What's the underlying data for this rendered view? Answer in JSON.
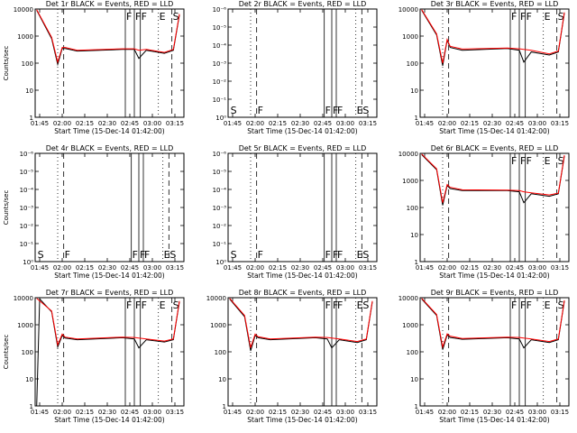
{
  "colors": {
    "events": "#000000",
    "lld": "#ff0000",
    "background": "#ffffff"
  },
  "chart_data": [
    {
      "type": "line",
      "title": "Det 1r BLACK = Events, RED = LLD",
      "xlabel": "Start Time (15-Dec-14 01:42:00)",
      "ylabel": "Counts/sec",
      "scale": "log",
      "ylim": [
        1,
        10000
      ],
      "yticks": [
        "10000",
        "1000",
        "100",
        "10",
        "1"
      ],
      "xlim": [
        "01:42",
        "03:21"
      ],
      "xticks": [
        "01:45",
        "02:00",
        "02:15",
        "02:30",
        "02:45",
        "03:00",
        "03:15"
      ],
      "markers": [
        {
          "time": "01:57",
          "style": "dotted",
          "label": ""
        },
        {
          "time": "02:01",
          "style": "dashed",
          "label": ""
        },
        {
          "time": "02:42",
          "style": "solid",
          "label": "F"
        },
        {
          "time": "02:48",
          "style": "solid",
          "label": "F"
        },
        {
          "time": "02:52",
          "style": "solid",
          "label": "F"
        },
        {
          "time": "03:04",
          "style": "dotted",
          "label": "E"
        },
        {
          "time": "03:13",
          "style": "dashed",
          "label": "S"
        }
      ],
      "series": [
        {
          "name": "Events",
          "x": [
            "01:43",
            "01:53",
            "01:57",
            "02:00",
            "02:02",
            "02:10",
            "02:40",
            "02:48",
            "02:51",
            "02:56",
            "03:08",
            "03:14",
            "03:18"
          ],
          "values": [
            9000,
            800,
            90,
            350,
            350,
            280,
            320,
            320,
            150,
            300,
            230,
            300,
            6000
          ]
        },
        {
          "name": "LLD",
          "x": [
            "01:43",
            "01:53",
            "01:57",
            "02:00",
            "02:02",
            "02:10",
            "02:40",
            "02:48",
            "02:51",
            "02:56",
            "03:08",
            "03:14",
            "03:18"
          ],
          "values": [
            9500,
            900,
            110,
            380,
            380,
            300,
            340,
            340,
            300,
            320,
            250,
            320,
            6500
          ]
        }
      ]
    },
    {
      "type": "line",
      "title": "Det 2r BLACK = Events, RED = LLD",
      "xlabel": "Start Time (15-Dec-14 01:42:00)",
      "ylabel": "",
      "scale": "log",
      "ylim": [
        1,
        1e-06
      ],
      "yticks": [
        "10⁻⁶",
        "10⁻⁵",
        "10⁻⁴",
        "10⁻³",
        "10⁻²",
        "10⁻¹",
        "10⁰"
      ],
      "xlim": [
        "01:42",
        "03:21"
      ],
      "xticks": [
        "01:45",
        "02:00",
        "02:15",
        "02:30",
        "02:45",
        "03:00",
        "03:15"
      ],
      "markers": [
        {
          "time": "01:43",
          "style": "none",
          "label": "S"
        },
        {
          "time": "01:57",
          "style": "dotted",
          "label": ""
        },
        {
          "time": "02:01",
          "style": "dashed",
          "label": "F"
        },
        {
          "time": "02:46",
          "style": "solid",
          "label": "F"
        },
        {
          "time": "02:51",
          "style": "solid",
          "label": "F"
        },
        {
          "time": "02:54",
          "style": "solid",
          "label": "F"
        },
        {
          "time": "03:07",
          "style": "dotted",
          "label": "E"
        },
        {
          "time": "03:11",
          "style": "dashed",
          "label": "S"
        }
      ],
      "series": []
    },
    {
      "type": "line",
      "title": "Det 3r BLACK = Events, RED = LLD",
      "xlabel": "Start Time (15-Dec-14 01:42:00)",
      "ylabel": "",
      "scale": "log",
      "ylim": [
        1,
        10000
      ],
      "yticks": [
        "10000",
        "1000",
        "100",
        "10",
        "1"
      ],
      "xlim": [
        "01:42",
        "03:21"
      ],
      "xticks": [
        "01:45",
        "02:00",
        "02:15",
        "02:30",
        "02:45",
        "03:00",
        "03:15"
      ],
      "markers": [
        {
          "time": "01:57",
          "style": "dotted",
          "label": ""
        },
        {
          "time": "02:01",
          "style": "dashed",
          "label": ""
        },
        {
          "time": "02:42",
          "style": "solid",
          "label": "F"
        },
        {
          "time": "02:48",
          "style": "solid",
          "label": "F"
        },
        {
          "time": "02:52",
          "style": "solid",
          "label": "F"
        },
        {
          "time": "03:04",
          "style": "dotted",
          "label": "E"
        },
        {
          "time": "03:13",
          "style": "dashed",
          "label": "S"
        }
      ],
      "series": [
        {
          "name": "Events",
          "x": [
            "01:43",
            "01:53",
            "01:57",
            "02:00",
            "02:02",
            "02:10",
            "02:40",
            "02:48",
            "02:51",
            "02:56",
            "03:08",
            "03:14",
            "03:18"
          ],
          "values": [
            9000,
            1100,
            80,
            700,
            380,
            300,
            350,
            300,
            110,
            260,
            200,
            260,
            7000
          ]
        },
        {
          "name": "LLD",
          "x": [
            "01:43",
            "01:53",
            "01:57",
            "02:00",
            "02:02",
            "02:10",
            "02:40",
            "02:48",
            "02:51",
            "02:56",
            "03:08",
            "03:14",
            "03:18"
          ],
          "values": [
            9500,
            1200,
            100,
            750,
            420,
            330,
            360,
            340,
            320,
            300,
            220,
            280,
            7500
          ]
        }
      ]
    },
    {
      "type": "line",
      "title": "Det 4r BLACK = Events, RED = LLD",
      "xlabel": "Start Time (15-Dec-14 01:42:00)",
      "ylabel": "Counts/sec",
      "scale": "log",
      "ylim": [
        1,
        1e-06
      ],
      "yticks": [
        "10⁻⁶",
        "10⁻⁵",
        "10⁻⁴",
        "10⁻³",
        "10⁻²",
        "10⁻¹",
        "10⁰"
      ],
      "xlim": [
        "01:42",
        "03:21"
      ],
      "xticks": [
        "01:45",
        "02:00",
        "02:15",
        "02:30",
        "02:45",
        "03:00",
        "03:15"
      ],
      "markers": [
        {
          "time": "01:43",
          "style": "none",
          "label": "S"
        },
        {
          "time": "01:57",
          "style": "dotted",
          "label": ""
        },
        {
          "time": "02:01",
          "style": "dashed",
          "label": "F"
        },
        {
          "time": "02:46",
          "style": "solid",
          "label": "F"
        },
        {
          "time": "02:51",
          "style": "solid",
          "label": "F"
        },
        {
          "time": "02:54",
          "style": "solid",
          "label": "F"
        },
        {
          "time": "03:07",
          "style": "dotted",
          "label": "E"
        },
        {
          "time": "03:11",
          "style": "dashed",
          "label": "S"
        }
      ],
      "series": []
    },
    {
      "type": "line",
      "title": "Det 5r BLACK = Events, RED = LLD",
      "xlabel": "Start Time (15-Dec-14 01:42:00)",
      "ylabel": "",
      "scale": "log",
      "ylim": [
        1,
        1e-06
      ],
      "yticks": [
        "10⁻⁶",
        "10⁻⁵",
        "10⁻⁴",
        "10⁻³",
        "10⁻²",
        "10⁻¹",
        "10⁰"
      ],
      "xlim": [
        "01:42",
        "03:21"
      ],
      "xticks": [
        "01:45",
        "02:00",
        "02:15",
        "02:30",
        "02:45",
        "03:00",
        "03:15"
      ],
      "markers": [
        {
          "time": "01:43",
          "style": "none",
          "label": "S"
        },
        {
          "time": "01:57",
          "style": "dotted",
          "label": ""
        },
        {
          "time": "02:01",
          "style": "dashed",
          "label": "F"
        },
        {
          "time": "02:46",
          "style": "solid",
          "label": "F"
        },
        {
          "time": "02:51",
          "style": "solid",
          "label": "F"
        },
        {
          "time": "02:54",
          "style": "solid",
          "label": "F"
        },
        {
          "time": "03:07",
          "style": "dotted",
          "label": "E"
        },
        {
          "time": "03:11",
          "style": "dashed",
          "label": "S"
        }
      ],
      "series": []
    },
    {
      "type": "line",
      "title": "Det 6r BLACK = Events, RED = LLD",
      "xlabel": "Start Time (15-Dec-14 01:42:00)",
      "ylabel": "",
      "scale": "log",
      "ylim": [
        1,
        10000
      ],
      "yticks": [
        "10000",
        "1000",
        "100",
        "10",
        "1"
      ],
      "xlim": [
        "01:42",
        "03:21"
      ],
      "xticks": [
        "01:45",
        "02:00",
        "02:15",
        "02:30",
        "02:45",
        "03:00",
        "03:15"
      ],
      "markers": [
        {
          "time": "01:57",
          "style": "dotted",
          "label": ""
        },
        {
          "time": "02:01",
          "style": "dashed",
          "label": ""
        },
        {
          "time": "02:42",
          "style": "solid",
          "label": "F"
        },
        {
          "time": "02:48",
          "style": "solid",
          "label": "F"
        },
        {
          "time": "02:52",
          "style": "solid",
          "label": "F"
        },
        {
          "time": "03:04",
          "style": "dotted",
          "label": "E"
        },
        {
          "time": "03:13",
          "style": "dashed",
          "label": "S"
        }
      ],
      "series": [
        {
          "name": "Events",
          "x": [
            "01:43",
            "01:53",
            "01:57",
            "02:00",
            "02:02",
            "02:10",
            "02:40",
            "02:48",
            "02:51",
            "02:56",
            "03:08",
            "03:14",
            "03:18"
          ],
          "values": [
            9000,
            2500,
            120,
            650,
            500,
            420,
            420,
            380,
            150,
            320,
            260,
            320,
            8000
          ]
        },
        {
          "name": "LLD",
          "x": [
            "01:43",
            "01:53",
            "01:57",
            "02:00",
            "02:02",
            "02:10",
            "02:40",
            "02:48",
            "02:51",
            "02:56",
            "03:08",
            "03:14",
            "03:18"
          ],
          "values": [
            9500,
            2700,
            150,
            700,
            560,
            450,
            440,
            420,
            380,
            350,
            290,
            340,
            8500
          ]
        }
      ]
    },
    {
      "type": "line",
      "title": "Det 7r BLACK = Events, RED = LLD",
      "xlabel": "Start Time (15-Dec-14 01:42:00)",
      "ylabel": "Counts/sec",
      "scale": "log",
      "ylim": [
        1,
        10000
      ],
      "yticks": [
        "10000",
        "1000",
        "100",
        "10",
        "1"
      ],
      "xlim": [
        "01:42",
        "03:21"
      ],
      "xticks": [
        "01:45",
        "02:00",
        "02:15",
        "02:30",
        "02:45",
        "03:00",
        "03:15"
      ],
      "markers": [
        {
          "time": "01:57",
          "style": "dotted",
          "label": ""
        },
        {
          "time": "02:01",
          "style": "dashed",
          "label": ""
        },
        {
          "time": "02:42",
          "style": "solid",
          "label": "F"
        },
        {
          "time": "02:48",
          "style": "solid",
          "label": "F"
        },
        {
          "time": "02:52",
          "style": "solid",
          "label": "F"
        },
        {
          "time": "03:04",
          "style": "dotted",
          "label": "E"
        },
        {
          "time": "03:13",
          "style": "dashed",
          "label": "S"
        }
      ],
      "series": [
        {
          "name": "Events",
          "x": [
            "01:43",
            "01:45",
            "01:53",
            "01:57",
            "02:00",
            "02:02",
            "02:10",
            "02:40",
            "02:48",
            "02:51",
            "02:56",
            "03:08",
            "03:14",
            "03:18"
          ],
          "values": [
            1,
            9000,
            3000,
            150,
            400,
            320,
            280,
            330,
            300,
            140,
            280,
            230,
            280,
            7000
          ]
        },
        {
          "name": "LLD",
          "x": [
            "01:43",
            "01:53",
            "01:57",
            "02:00",
            "02:02",
            "02:10",
            "02:40",
            "02:48",
            "02:51",
            "02:56",
            "03:08",
            "03:14",
            "03:18"
          ],
          "values": [
            9500,
            3200,
            180,
            450,
            350,
            300,
            350,
            340,
            320,
            300,
            250,
            300,
            7500
          ]
        }
      ]
    },
    {
      "type": "line",
      "title": "Det 8r BLACK = Events, RED = LLD",
      "xlabel": "Start Time (15-Dec-14 01:42:00)",
      "ylabel": "",
      "scale": "log",
      "ylim": [
        1,
        10000
      ],
      "yticks": [
        "10000",
        "1000",
        "100",
        "10",
        "1"
      ],
      "xlim": [
        "01:42",
        "03:21"
      ],
      "xticks": [
        "01:45",
        "02:00",
        "02:15",
        "02:30",
        "02:45",
        "03:00",
        "03:15"
      ],
      "markers": [
        {
          "time": "01:57",
          "style": "dotted",
          "label": ""
        },
        {
          "time": "02:01",
          "style": "dashed",
          "label": ""
        },
        {
          "time": "02:46",
          "style": "solid",
          "label": "F"
        },
        {
          "time": "02:51",
          "style": "solid",
          "label": "F"
        },
        {
          "time": "02:54",
          "style": "solid",
          "label": "F"
        },
        {
          "time": "03:07",
          "style": "dotted",
          "label": "E"
        },
        {
          "time": "03:11",
          "style": "dashed",
          "label": "S"
        }
      ],
      "series": [
        {
          "name": "Events",
          "x": [
            "01:43",
            "01:53",
            "01:57",
            "02:00",
            "02:02",
            "02:10",
            "02:40",
            "02:48",
            "02:51",
            "02:56",
            "03:08",
            "03:14",
            "03:18"
          ],
          "values": [
            9000,
            2000,
            110,
            400,
            330,
            280,
            330,
            300,
            140,
            280,
            220,
            280,
            7000
          ]
        },
        {
          "name": "LLD",
          "x": [
            "01:43",
            "01:53",
            "01:57",
            "02:00",
            "02:02",
            "02:10",
            "02:40",
            "02:48",
            "02:51",
            "02:56",
            "03:08",
            "03:14",
            "03:18"
          ],
          "values": [
            9500,
            2200,
            140,
            450,
            360,
            300,
            350,
            340,
            320,
            300,
            240,
            300,
            7500
          ]
        }
      ]
    },
    {
      "type": "line",
      "title": "Det 9r BLACK = Events, RED = LLD",
      "xlabel": "Start Time (15-Dec-14 01:42:00)",
      "ylabel": "",
      "scale": "log",
      "ylim": [
        1,
        10000
      ],
      "yticks": [
        "10000",
        "1000",
        "100",
        "10",
        "1"
      ],
      "xlim": [
        "01:42",
        "03:21"
      ],
      "xticks": [
        "01:45",
        "02:00",
        "02:15",
        "02:30",
        "02:45",
        "03:00",
        "03:15"
      ],
      "markers": [
        {
          "time": "01:57",
          "style": "dotted",
          "label": ""
        },
        {
          "time": "02:01",
          "style": "dashed",
          "label": ""
        },
        {
          "time": "02:42",
          "style": "solid",
          "label": "F"
        },
        {
          "time": "02:48",
          "style": "solid",
          "label": "F"
        },
        {
          "time": "02:52",
          "style": "solid",
          "label": "F"
        },
        {
          "time": "03:04",
          "style": "dotted",
          "label": "E"
        },
        {
          "time": "03:13",
          "style": "dashed",
          "label": "S"
        }
      ],
      "series": [
        {
          "name": "Events",
          "x": [
            "01:43",
            "01:53",
            "01:57",
            "02:00",
            "02:02",
            "02:10",
            "02:40",
            "02:48",
            "02:51",
            "02:56",
            "03:08",
            "03:14",
            "03:18"
          ],
          "values": [
            9000,
            2200,
            120,
            420,
            340,
            290,
            330,
            300,
            140,
            280,
            220,
            280,
            7500
          ]
        },
        {
          "name": "LLD",
          "x": [
            "01:43",
            "01:53",
            "01:57",
            "02:00",
            "02:02",
            "02:10",
            "02:40",
            "02:48",
            "02:51",
            "02:56",
            "03:08",
            "03:14",
            "03:18"
          ],
          "values": [
            9500,
            2400,
            150,
            460,
            380,
            310,
            350,
            340,
            320,
            300,
            240,
            300,
            8000
          ]
        }
      ]
    }
  ]
}
